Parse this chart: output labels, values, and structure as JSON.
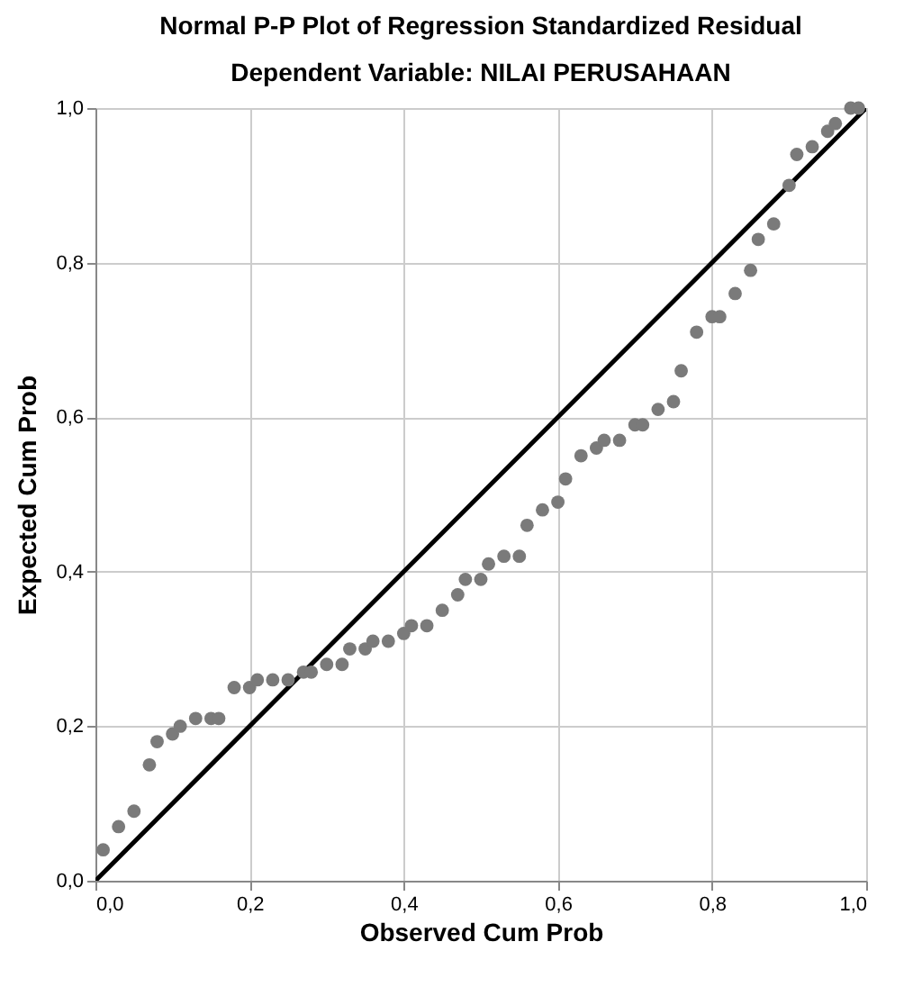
{
  "chart_data": {
    "type": "scatter",
    "title": "Normal P-P Plot of Regression Standardized Residual",
    "subtitle": "Dependent Variable: NILAI PERUSAHAAN",
    "xlabel": "Observed Cum Prob",
    "ylabel": "Expected Cum Prob",
    "xlim": [
      0,
      1
    ],
    "ylim": [
      0,
      1
    ],
    "xticks": [
      {
        "value": 0,
        "label": "0,0"
      },
      {
        "value": 0.2,
        "label": "0,2"
      },
      {
        "value": 0.4,
        "label": "0,4"
      },
      {
        "value": 0.6,
        "label": "0,6"
      },
      {
        "value": 0.8,
        "label": "0,8"
      },
      {
        "value": 1,
        "label": "1,0"
      }
    ],
    "yticks": [
      {
        "value": 0,
        "label": "0,0"
      },
      {
        "value": 0.2,
        "label": "0,2"
      },
      {
        "value": 0.4,
        "label": "0,4"
      },
      {
        "value": 0.6,
        "label": "0,6"
      },
      {
        "value": 0.8,
        "label": "0,8"
      },
      {
        "value": 1,
        "label": "1,0"
      }
    ],
    "grid": true,
    "series": [
      {
        "marker": "circle",
        "color": "#7a7a7a",
        "x": [
          0.01,
          0.03,
          0.05,
          0.07,
          0.08,
          0.1,
          0.11,
          0.13,
          0.15,
          0.16,
          0.18,
          0.2,
          0.21,
          0.23,
          0.25,
          0.27,
          0.28,
          0.3,
          0.32,
          0.33,
          0.35,
          0.36,
          0.38,
          0.4,
          0.41,
          0.43,
          0.45,
          0.47,
          0.48,
          0.5,
          0.51,
          0.53,
          0.55,
          0.56,
          0.58,
          0.6,
          0.61,
          0.63,
          0.65,
          0.66,
          0.68,
          0.7,
          0.71,
          0.73,
          0.75,
          0.76,
          0.78,
          0.8,
          0.81,
          0.83,
          0.85,
          0.86,
          0.88,
          0.9,
          0.91,
          0.93,
          0.95,
          0.96,
          0.98,
          0.99
        ],
        "values": [
          0.04,
          0.07,
          0.09,
          0.15,
          0.18,
          0.19,
          0.2,
          0.21,
          0.21,
          0.21,
          0.25,
          0.25,
          0.26,
          0.26,
          0.26,
          0.27,
          0.27,
          0.28,
          0.28,
          0.3,
          0.3,
          0.31,
          0.31,
          0.32,
          0.33,
          0.33,
          0.35,
          0.37,
          0.39,
          0.39,
          0.41,
          0.42,
          0.42,
          0.46,
          0.48,
          0.49,
          0.52,
          0.55,
          0.56,
          0.57,
          0.57,
          0.59,
          0.59,
          0.61,
          0.62,
          0.66,
          0.71,
          0.73,
          0.73,
          0.76,
          0.79,
          0.83,
          0.85,
          0.9,
          0.94,
          0.95,
          0.97,
          0.98,
          1.0,
          1.0
        ]
      },
      {
        "type": "line",
        "color": "#000000",
        "x": [
          0,
          1
        ],
        "values": [
          0,
          1
        ]
      }
    ]
  }
}
